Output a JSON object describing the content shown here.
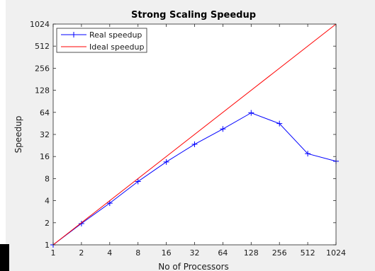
{
  "chart_data": {
    "type": "line",
    "title": "Strong Scaling Speedup",
    "xlabel": "No of Processors",
    "ylabel": "Speedup",
    "xscale": "log2",
    "yscale": "log2",
    "xlim": [
      1,
      1024
    ],
    "ylim": [
      1,
      1024
    ],
    "x_ticks": [
      "1",
      "2",
      "4",
      "8",
      "16",
      "32",
      "64",
      "128",
      "256",
      "512",
      "1024"
    ],
    "y_ticks": [
      "1",
      "2",
      "4",
      "8",
      "16",
      "32",
      "64",
      "128",
      "256",
      "512",
      "1024"
    ],
    "legend_position": "top-left",
    "grid": false,
    "series": [
      {
        "name": "Real speedup",
        "color": "#0000ff",
        "marker": "+",
        "x": [
          1,
          2,
          4,
          8,
          16,
          32,
          64,
          128,
          256,
          512,
          1024
        ],
        "y": [
          1,
          1.95,
          3.7,
          7.3,
          13.5,
          23.5,
          38,
          63,
          45,
          17.5,
          13.8
        ]
      },
      {
        "name": "Ideal speedup",
        "color": "#ff0000",
        "marker": "none",
        "x": [
          1,
          1024
        ],
        "y": [
          1,
          1024
        ]
      }
    ]
  }
}
